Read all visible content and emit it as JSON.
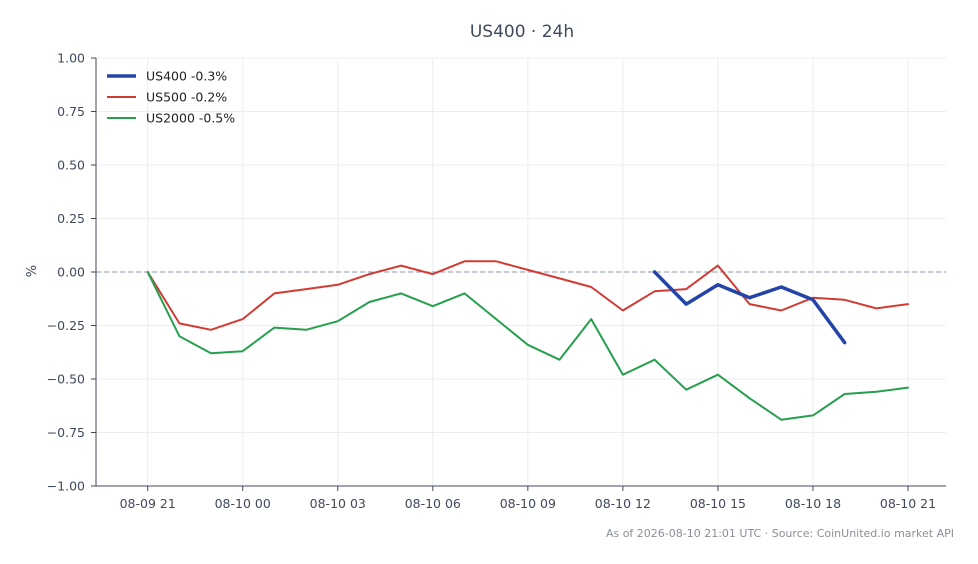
{
  "chart_data": {
    "type": "line",
    "title": "US400 · 24h",
    "xlabel": "",
    "ylabel": "%",
    "ylim": [
      -1.0,
      1.0
    ],
    "xlim": [
      "2026-08-09 20:00",
      "2026-08-10 21:00"
    ],
    "ytick_labels": [
      "1.00",
      "0.75",
      "0.50",
      "0.25",
      "0.00",
      "−0.25",
      "−0.50",
      "−0.75",
      "−1.00"
    ],
    "y_ticks": [
      1.0,
      0.75,
      0.5,
      0.25,
      0.0,
      -0.25,
      -0.5,
      -0.75,
      -1.0
    ],
    "xtick_labels": [
      "08-09 21",
      "08-10 00",
      "08-10 03",
      "08-10 06",
      "08-10 09",
      "08-10 12",
      "08-10 15",
      "08-10 18",
      "08-10 21"
    ],
    "x_ticks": [
      "2026-08-09 21:00",
      "2026-08-10 00:00",
      "2026-08-10 03:00",
      "2026-08-10 06:00",
      "2026-08-10 09:00",
      "2026-08-10 12:00",
      "2026-08-10 15:00",
      "2026-08-10 18:00",
      "2026-08-10 21:00"
    ],
    "grid": true,
    "legend_position": "top-left",
    "reference_line": {
      "y": 0.0,
      "style": "dashed",
      "color": "#8a97b0"
    },
    "series": [
      {
        "name": "US400 -0.3%",
        "color": "#2444a8",
        "x": [
          "2026-08-10 13:00",
          "2026-08-10 14:00",
          "2026-08-10 15:00",
          "2026-08-10 16:00",
          "2026-08-10 17:00",
          "2026-08-10 18:00",
          "2026-08-10 19:00"
        ],
        "values": [
          0.0,
          -0.15,
          -0.06,
          -0.12,
          -0.07,
          -0.13,
          -0.33
        ]
      },
      {
        "name": "US500 -0.2%",
        "color": "#d13b34",
        "x": [
          "2026-08-09 21:00",
          "2026-08-09 22:00",
          "2026-08-09 23:00",
          "2026-08-10 00:00",
          "2026-08-10 01:00",
          "2026-08-10 02:00",
          "2026-08-10 03:00",
          "2026-08-10 04:00",
          "2026-08-10 05:00",
          "2026-08-10 06:00",
          "2026-08-10 07:00",
          "2026-08-10 08:00",
          "2026-08-10 09:00",
          "2026-08-10 10:00",
          "2026-08-10 11:00",
          "2026-08-10 12:00",
          "2026-08-10 13:00",
          "2026-08-10 14:00",
          "2026-08-10 15:00",
          "2026-08-10 16:00",
          "2026-08-10 17:00",
          "2026-08-10 18:00",
          "2026-08-10 19:00",
          "2026-08-10 20:00",
          "2026-08-10 21:00"
        ],
        "values": [
          0.0,
          -0.24,
          -0.27,
          -0.22,
          -0.1,
          -0.08,
          -0.06,
          -0.01,
          0.03,
          -0.01,
          0.05,
          0.05,
          0.01,
          -0.03,
          -0.07,
          -0.18,
          -0.09,
          -0.08,
          0.03,
          -0.15,
          -0.18,
          -0.12,
          -0.13,
          -0.17,
          -0.15
        ]
      },
      {
        "name": "US2000 -0.5%",
        "color": "#26a04d",
        "x": [
          "2026-08-09 21:00",
          "2026-08-09 22:00",
          "2026-08-09 23:00",
          "2026-08-10 00:00",
          "2026-08-10 01:00",
          "2026-08-10 02:00",
          "2026-08-10 03:00",
          "2026-08-10 04:00",
          "2026-08-10 05:00",
          "2026-08-10 06:00",
          "2026-08-10 07:00",
          "2026-08-10 08:00",
          "2026-08-10 09:00",
          "2026-08-10 10:00",
          "2026-08-10 11:00",
          "2026-08-10 12:00",
          "2026-08-10 13:00",
          "2026-08-10 14:00",
          "2026-08-10 15:00",
          "2026-08-10 16:00",
          "2026-08-10 17:00",
          "2026-08-10 18:00",
          "2026-08-10 19:00",
          "2026-08-10 20:00",
          "2026-08-10 21:00"
        ],
        "values": [
          0.0,
          -0.3,
          -0.38,
          -0.37,
          -0.26,
          -0.27,
          -0.23,
          -0.14,
          -0.1,
          -0.16,
          -0.1,
          -0.22,
          -0.34,
          -0.41,
          -0.22,
          -0.48,
          -0.41,
          -0.55,
          -0.48,
          -0.59,
          -0.69,
          -0.67,
          -0.57,
          -0.56,
          -0.54
        ]
      }
    ]
  },
  "footer": "As of 2026-08-10 21:01 UTC · Source: CoinUnited.io market API"
}
